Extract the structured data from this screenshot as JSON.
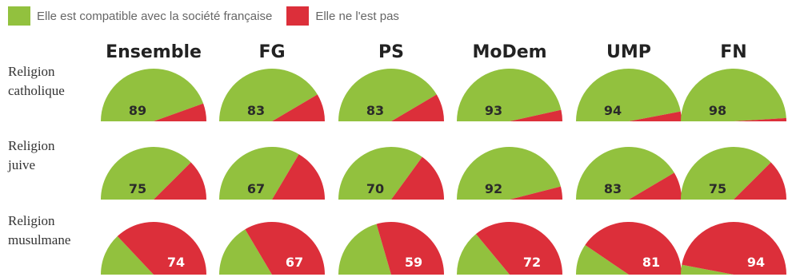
{
  "colors": {
    "compatible": "#92c13e",
    "not_compatible": "#dc2f3a"
  },
  "legend": [
    {
      "label": "Elle est compatible avec la société française",
      "color": "#92c13e"
    },
    {
      "label": "Elle ne l'est pas",
      "color": "#dc2f3a"
    }
  ],
  "chart_data": {
    "type": "pie",
    "shape": "half-pie",
    "columns": [
      "Ensemble",
      "FG",
      "PS",
      "MoDem",
      "UMP",
      "FN"
    ],
    "rows": [
      {
        "label_lines": [
          "Religion",
          "catholique"
        ],
        "compatible": [
          89,
          83,
          83,
          93,
          94,
          98
        ],
        "not_compatible": [
          11,
          17,
          17,
          7,
          6,
          2
        ],
        "shown": "compatible"
      },
      {
        "label_lines": [
          "Religion",
          "juive"
        ],
        "compatible": [
          75,
          67,
          70,
          92,
          83,
          75
        ],
        "not_compatible": [
          25,
          33,
          30,
          8,
          17,
          25
        ],
        "shown": "compatible"
      },
      {
        "label_lines": [
          "Religion",
          "musulmane"
        ],
        "compatible": [
          26,
          33,
          41,
          28,
          19,
          6
        ],
        "not_compatible": [
          74,
          67,
          59,
          72,
          81,
          94
        ],
        "shown": "not_compatible"
      }
    ]
  }
}
